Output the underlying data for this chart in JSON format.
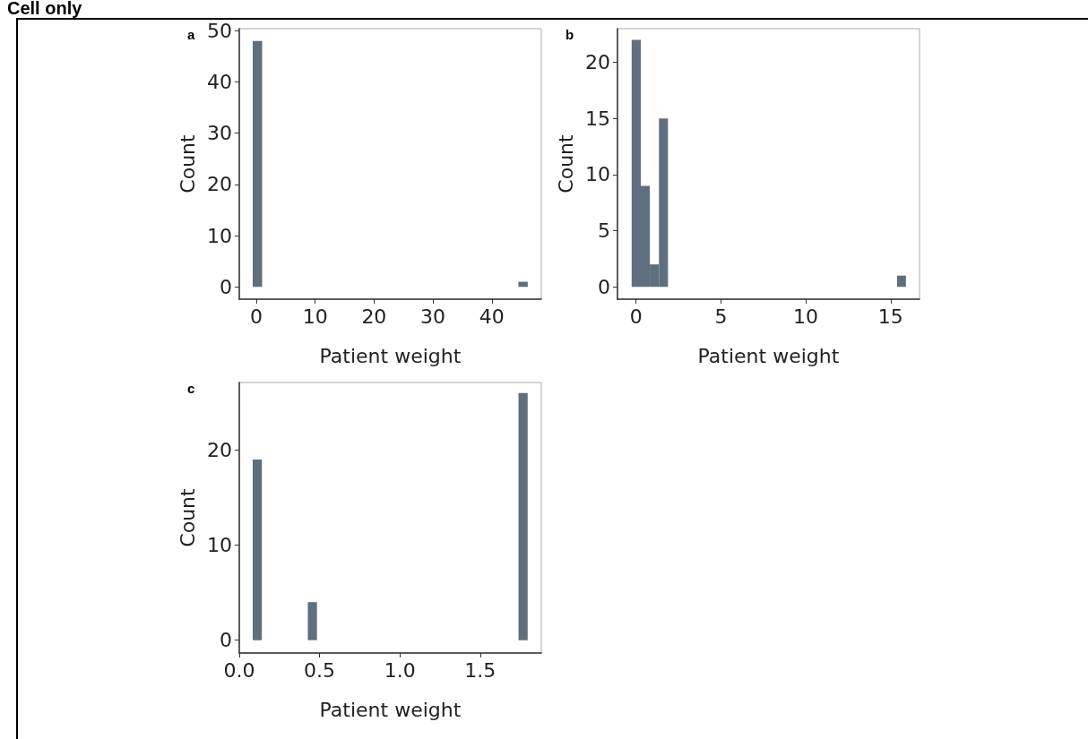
{
  "chart_data": [
    {
      "type": "histogram",
      "title": "a",
      "annotations": [
        "Cell only"
      ],
      "xlabel": "Patient weight",
      "ylabel": "Count",
      "color": "#5f6f7f",
      "bins": [
        -0.6,
        1.0,
        44.5,
        46.1
      ],
      "values": [
        48,
        0,
        1
      ],
      "xlim": [
        -2.9,
        48.4
      ],
      "ylim": [
        -2.4,
        50.4
      ],
      "xticks": [
        0,
        10,
        20,
        30,
        40
      ],
      "yticks": [
        0,
        10,
        20,
        30,
        40,
        50
      ],
      "grid": false
    },
    {
      "type": "histogram",
      "title": "b",
      "xlabel": "Patient weight",
      "ylabel": "Count",
      "color": "#5f6f7f",
      "bins": [
        -0.26,
        0.28,
        0.81,
        1.35,
        1.88,
        15.38,
        15.9
      ],
      "values": [
        22,
        9,
        2,
        15,
        0,
        1
      ],
      "xlim": [
        -1.1,
        16.7
      ],
      "ylim": [
        -1.1,
        23
      ],
      "xticks": [
        0,
        5,
        10,
        15
      ],
      "yticks": [
        0,
        5,
        10,
        15,
        20
      ],
      "grid": false
    },
    {
      "type": "histogram",
      "title": "c",
      "xlabel": "Patient weight",
      "ylabel": "Count",
      "color": "#5f6f7f",
      "bins": [
        0.084,
        0.141,
        0.427,
        0.484,
        1.738,
        1.795
      ],
      "values": [
        19,
        0,
        4,
        0,
        26
      ],
      "xlim": [
        0,
        1.88
      ],
      "ylim": [
        -1.35,
        27.1
      ],
      "xticks": [
        {
          "value": 0,
          "label": "0.0"
        },
        {
          "value": 0.5,
          "label": "0.5"
        },
        {
          "value": 1,
          "label": "1.0"
        },
        {
          "value": 1.5,
          "label": "1.5"
        }
      ],
      "yticks": [
        0,
        10,
        20
      ],
      "grid": false
    }
  ]
}
